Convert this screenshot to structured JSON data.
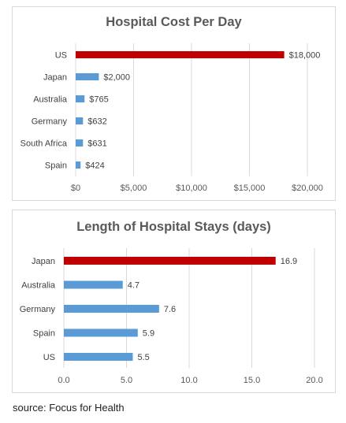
{
  "chart_data": [
    {
      "type": "bar",
      "orientation": "horizontal",
      "title": "Hospital Cost Per Day",
      "categories": [
        "US",
        "Japan",
        "Australia",
        "Germany",
        "South Africa",
        "Spain"
      ],
      "values": [
        18000,
        2000,
        765,
        632,
        631,
        424
      ],
      "data_labels": [
        "$18,000",
        "$2,000",
        "$765",
        "$632",
        "$631",
        "$424"
      ],
      "xlim": [
        0,
        20000
      ],
      "xticks": [
        0,
        5000,
        10000,
        15000,
        20000
      ],
      "xtick_labels": [
        "$0",
        "$5,000",
        "$10,000",
        "$15,000",
        "$20,000"
      ],
      "grid": "vertical",
      "highlight_index": 0,
      "colors": {
        "bar": "#5b9bd5",
        "highlight": "#c00000",
        "grid": "#d9d9d9"
      }
    },
    {
      "type": "bar",
      "orientation": "horizontal",
      "title": "Length of Hospital Stays (days)",
      "categories": [
        "Japan",
        "Australia",
        "Germany",
        "Spain",
        "US"
      ],
      "values": [
        16.9,
        4.7,
        7.6,
        5.9,
        5.5
      ],
      "data_labels": [
        "16.9",
        "4.7",
        "7.6",
        "5.9",
        "5.5"
      ],
      "xlim": [
        0,
        20
      ],
      "xticks": [
        0,
        5,
        10,
        15,
        20
      ],
      "xtick_labels": [
        "0.0",
        "5.0",
        "10.0",
        "15.0",
        "20.0"
      ],
      "grid": "vertical",
      "highlight_index": 0,
      "colors": {
        "bar": "#5b9bd5",
        "highlight": "#c00000",
        "grid": "#d9d9d9"
      }
    }
  ],
  "source": "source: Focus for Health"
}
